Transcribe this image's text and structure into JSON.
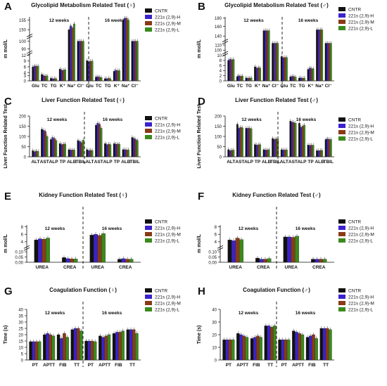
{
  "colors": {
    "CNTR": "#111111",
    "H": "#3a22cc",
    "M": "#8a3a16",
    "L": "#3a8a1c",
    "bar_outline": "#222222"
  },
  "legend_labels": [
    "CNTR",
    "221s (2,9)-H",
    "221s (2,9)-M",
    "221s (2,9)-L"
  ],
  "chart_data": [
    {
      "letter": "A",
      "type": "bar",
      "title": "Glycolipid Metabolism Related Test (♀)",
      "ylabel": "m mol/L",
      "group_labels": [
        "12 weeks",
        "16 weeks"
      ],
      "categories": [
        "Glu",
        "TC",
        "TG",
        "K⁺",
        "Na⁺",
        "Cl⁻",
        "Glu",
        "TC",
        "TG",
        "K⁺",
        "Na⁺",
        "Cl⁻"
      ],
      "series": [
        {
          "name": "CNTR",
          "values": [
            6.5,
            3,
            1.2,
            5.5,
            150,
            100,
            9.5,
            1.8,
            1.1,
            4.5,
            155,
            100
          ]
        },
        {
          "name": "221s (2,9)-H",
          "values": [
            7,
            2.5,
            1,
            5,
            152,
            100,
            9,
            2,
            1,
            5,
            156,
            100
          ]
        },
        {
          "name": "221s (2,9)-M",
          "values": [
            6.8,
            2.2,
            1.1,
            5,
            151,
            100,
            9.2,
            1.7,
            1.2,
            4.8,
            156,
            100
          ]
        },
        {
          "name": "221s (2,9)-L",
          "values": [
            7,
            2.4,
            1,
            5.2,
            153,
            100,
            9.3,
            1.6,
            1,
            4.8,
            155,
            100
          ]
        }
      ],
      "ticks": [
        "0",
        "3",
        "4",
        "6",
        "9",
        "12",
        "90",
        "100",
        "150",
        "155"
      ]
    },
    {
      "letter": "B",
      "type": "bar",
      "title": "Glycolipid Metabolism Related Test (♂)",
      "ylabel": "m mol/L",
      "group_labels": [
        "12 weeks",
        "16 weeks"
      ],
      "categories": [
        "Glu",
        "TC",
        "TG",
        "K⁺",
        "Na⁺",
        "Cl⁻",
        "Glu",
        "TC",
        "TG",
        "K⁺",
        "Na⁺",
        "Cl⁻"
      ],
      "series": [
        {
          "name": "CNTR",
          "values": [
            8,
            1.7,
            1.2,
            5.5,
            150,
            102,
            9.5,
            1.6,
            1.1,
            4.5,
            152,
            102
          ]
        },
        {
          "name": "221s (2,9)-H",
          "values": [
            8.5,
            2,
            1,
            5,
            150,
            102,
            9,
            1.8,
            1.2,
            5,
            152,
            102
          ]
        },
        {
          "name": "221s (2,9)-M",
          "values": [
            8.2,
            1.8,
            1.1,
            5.2,
            150,
            102,
            9.2,
            1.7,
            1,
            4.8,
            152,
            102
          ]
        },
        {
          "name": "221s (2,9)-L",
          "values": [
            8.4,
            1.9,
            1.2,
            5,
            150,
            102,
            9.1,
            1.5,
            1.1,
            4.8,
            152,
            102
          ]
        }
      ],
      "ticks": [
        "0",
        "2",
        "4",
        "6",
        "8",
        "10",
        "100",
        "110",
        "140",
        "160",
        "180"
      ]
    },
    {
      "letter": "C",
      "type": "bar",
      "title": "Liver Function Related Test (♀)",
      "ylabel": "Liver Function Related Test",
      "group_labels": [
        "12 weeks",
        "16 weeks"
      ],
      "categories": [
        "ALT",
        "AST",
        "ALP",
        "TP",
        "ALB",
        "TBIL",
        "ALT",
        "AST",
        "ALP",
        "TP",
        "ALB",
        "TBIL"
      ],
      "ylim": [
        0,
        200
      ],
      "ticks": [
        "0",
        "50",
        "100",
        "150",
        "200"
      ],
      "series": [
        {
          "name": "CNTR",
          "values": [
            30,
            135,
            85,
            65,
            35,
            80,
            35,
            155,
            65,
            65,
            35,
            95
          ]
        },
        {
          "name": "221s (2,9)-H",
          "values": [
            25,
            130,
            95,
            60,
            33,
            75,
            30,
            165,
            60,
            62,
            35,
            90
          ]
        },
        {
          "name": "221s (2,9)-M",
          "values": [
            28,
            125,
            90,
            62,
            34,
            70,
            32,
            160,
            62,
            63,
            34,
            85
          ]
        },
        {
          "name": "221s (2,9)-L",
          "values": [
            27,
            100,
            80,
            63,
            33,
            82,
            31,
            140,
            60,
            62,
            34,
            80
          ]
        }
      ]
    },
    {
      "letter": "D",
      "type": "bar",
      "title": "Liver Function Related Test (♂)",
      "ylabel": "Liver Function Related Test",
      "group_labels": [
        "12 weeks",
        "16 weeks"
      ],
      "categories": [
        "ALT",
        "AST",
        "ALP",
        "TP",
        "ALB",
        "TBIL",
        "ALT",
        "AST",
        "ALP",
        "TP",
        "ALB",
        "TBIL"
      ],
      "ylim": [
        0,
        200
      ],
      "ticks": [
        "0",
        "50",
        "100",
        "150",
        "200"
      ],
      "series": [
        {
          "name": "CNTR",
          "values": [
            35,
            160,
            140,
            60,
            35,
            90,
            35,
            175,
            165,
            58,
            30,
            85
          ]
        },
        {
          "name": "221s (2,9)-H",
          "values": [
            30,
            140,
            140,
            58,
            33,
            85,
            33,
            170,
            145,
            56,
            30,
            88
          ]
        },
        {
          "name": "221s (2,9)-M",
          "values": [
            32,
            145,
            140,
            59,
            34,
            88,
            34,
            168,
            150,
            57,
            31,
            86
          ]
        },
        {
          "name": "221s (2,9)-L",
          "values": [
            33,
            142,
            138,
            60,
            35,
            87,
            34,
            165,
            155,
            57,
            31,
            85
          ]
        }
      ]
    },
    {
      "letter": "E",
      "type": "bar",
      "title": "Kidney Function Related Test (♀)",
      "ylabel": "m mol/L",
      "group_labels": [
        "12 weeks",
        "16 weeks"
      ],
      "categories": [
        "UREA",
        "CREA",
        "UREA",
        "CREA"
      ],
      "ticks": [
        "0.00",
        "0.05",
        "0.10",
        "4",
        "6",
        "8"
      ],
      "series": [
        {
          "name": "CNTR",
          "values": [
            4.5,
            0.045,
            5.8,
            0.03
          ]
        },
        {
          "name": "221s (2,9)-H",
          "values": [
            4.8,
            0.035,
            6,
            0.035
          ]
        },
        {
          "name": "221s (2,9)-M",
          "values": [
            4.7,
            0.033,
            5.7,
            0.03
          ]
        },
        {
          "name": "221s (2,9)-L",
          "values": [
            5,
            0.032,
            6.2,
            0.03
          ]
        }
      ]
    },
    {
      "letter": "F",
      "type": "bar",
      "title": "Kidney Function Related Test (♂)",
      "ylabel": "m mol/L",
      "group_labels": [
        "12 weeks",
        "16 weeks"
      ],
      "categories": [
        "UREA",
        "CREA",
        "UREA",
        "CREA"
      ],
      "ticks": [
        "0.00",
        "0.05",
        "0.10",
        "4",
        "6",
        "8"
      ],
      "series": [
        {
          "name": "CNTR",
          "values": [
            4.5,
            0.04,
            5.3,
            0.03
          ]
        },
        {
          "name": "221s (2,9)-H",
          "values": [
            4.3,
            0.03,
            5.3,
            0.03
          ]
        },
        {
          "name": "221s (2,9)-M",
          "values": [
            5,
            0.03,
            5.2,
            0.03
          ]
        },
        {
          "name": "221s (2,9)-L",
          "values": [
            4.6,
            0.035,
            5.5,
            0.03
          ]
        }
      ]
    },
    {
      "letter": "G",
      "type": "bar",
      "title": "Coagulation Function (♀)",
      "ylabel": "Time (s)",
      "group_labels": [
        "12 weeks",
        "16 weeks"
      ],
      "categories": [
        "PT",
        "APTT",
        "FIB",
        "TT",
        "PT",
        "APTT",
        "FIB",
        "TT"
      ],
      "ylim": [
        0,
        40
      ],
      "ticks": [
        "0",
        "5",
        "10",
        "15",
        "20",
        "25",
        "30",
        "35",
        "40"
      ],
      "series": [
        {
          "name": "CNTR",
          "values": [
            14.5,
            20,
            20,
            24,
            15,
            19,
            21,
            24
          ]
        },
        {
          "name": "221s (2,9)-H",
          "values": [
            14.5,
            21,
            17,
            25,
            15,
            18,
            22,
            24
          ]
        },
        {
          "name": "221s (2,9)-M",
          "values": [
            14.5,
            20,
            21,
            25,
            15,
            19,
            22,
            24
          ]
        },
        {
          "name": "221s (2,9)-L",
          "values": [
            14.5,
            19,
            18,
            23,
            14.5,
            20,
            23,
            21
          ]
        }
      ]
    },
    {
      "letter": "H",
      "type": "bar",
      "title": "Coagulation Function (♂)",
      "ylabel": "Time (s)",
      "group_labels": [
        "12 weeks",
        "16 weeks"
      ],
      "categories": [
        "PT",
        "APTT",
        "FIB",
        "TT",
        "PT",
        "APTT",
        "FIB",
        "TT"
      ],
      "ylim": [
        0,
        40
      ],
      "ticks": [
        "0",
        "10",
        "20",
        "30",
        "40"
      ],
      "series": [
        {
          "name": "CNTR",
          "values": [
            16,
            21,
            17,
            27,
            16,
            23,
            18,
            25
          ]
        },
        {
          "name": "221s (2,9)-H",
          "values": [
            16,
            20,
            18,
            27,
            16,
            22,
            19,
            25
          ]
        },
        {
          "name": "221s (2,9)-M",
          "values": [
            16,
            19,
            19,
            26,
            16,
            21,
            20,
            25
          ]
        },
        {
          "name": "221s (2,9)-L",
          "values": [
            16,
            18,
            18,
            27,
            16,
            20,
            17,
            24
          ]
        }
      ]
    }
  ]
}
